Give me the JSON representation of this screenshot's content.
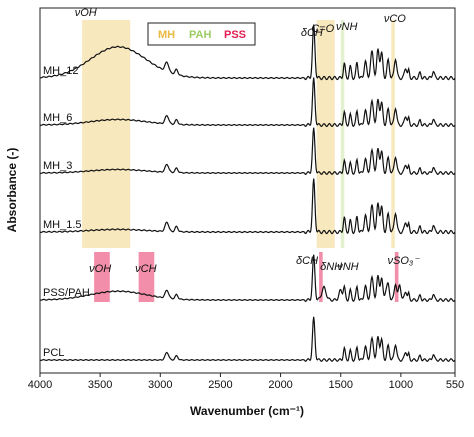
{
  "chart_data": {
    "type": "line",
    "xlabel": "Wavenumber (cm⁻¹)",
    "ylabel": "Absorbance (-)",
    "xlim": [
      4000,
      550
    ],
    "x_ticks": [
      4000,
      3500,
      3000,
      2500,
      2000,
      1500,
      1000,
      550
    ],
    "reversed_x": true,
    "grid": false,
    "legend_position": "top-center",
    "legend": [
      {
        "name": "MH",
        "color": "#f5e0a8"
      },
      {
        "name": "PAH",
        "color": "#d9ecc0"
      },
      {
        "name": "PSS",
        "color": "#f07a9a"
      }
    ],
    "bands": [
      {
        "group": "MH",
        "x0": 3650,
        "x1": 3250,
        "rows": "MH"
      },
      {
        "group": "MH",
        "x0": 1700,
        "x1": 1550,
        "rows": "MH"
      },
      {
        "group": "PAH",
        "x0": 1500,
        "x1": 1470,
        "rows": "MH"
      },
      {
        "group": "MH",
        "x0": 1080,
        "x1": 1050,
        "rows": "MH"
      },
      {
        "group": "PSS",
        "x0": 3550,
        "x1": 3420,
        "rows": "PSS/PAH"
      },
      {
        "group": "PSS",
        "x0": 3180,
        "x1": 3050,
        "rows": "PSS/PAH"
      },
      {
        "group": "PSS",
        "x0": 1680,
        "x1": 1650,
        "rows": "PSS/PAH"
      },
      {
        "group": "PSS",
        "x0": 1050,
        "x1": 1020,
        "rows": "PSS/PAH"
      }
    ],
    "series": [
      {
        "name": "MH_12",
        "oh_height": 0.6
      },
      {
        "name": "MH_6",
        "oh_height": 0.12
      },
      {
        "name": "MH_3",
        "oh_height": 0.08
      },
      {
        "name": "MH_1.5",
        "oh_height": 0.05
      },
      {
        "name": "PSS/PAH",
        "oh_height": 0.2
      },
      {
        "name": "PCL",
        "oh_height": 0.0
      }
    ],
    "annotations": [
      {
        "text": "νOH",
        "series": "MH_12",
        "x": 3620
      },
      {
        "text": "δCH",
        "series": "MH_12",
        "x": 1740
      },
      {
        "text": "C=O",
        "series": "MH_12",
        "x": 1650
      },
      {
        "text": "νNH",
        "series": "MH_12",
        "x": 1450
      },
      {
        "text": "νCO",
        "series": "MH_12",
        "x": 1050
      },
      {
        "text": "νOH",
        "series": "PSS/PAH",
        "x": 3500
      },
      {
        "text": "νCH",
        "series": "PSS/PAH",
        "x": 3120
      },
      {
        "text": "δCH",
        "series": "PSS/PAH",
        "x": 1780
      },
      {
        "text": "δNH",
        "series": "PSS/PAH",
        "x": 1580
      },
      {
        "text": "νNH",
        "series": "PSS/PAH",
        "x": 1440
      },
      {
        "text": "νSO₃⁻",
        "series": "PSS/PAH",
        "x": 980
      }
    ]
  }
}
